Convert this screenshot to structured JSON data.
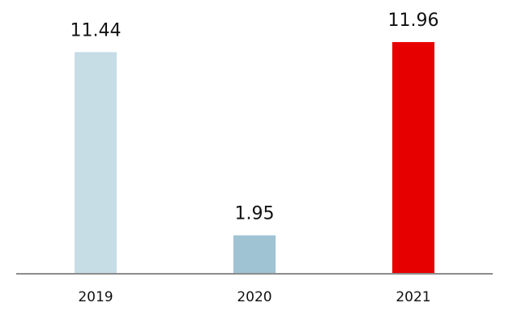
{
  "chart_data": {
    "type": "bar",
    "categories": [
      "2019",
      "2020",
      "2021"
    ],
    "values": [
      11.44,
      1.95,
      11.96
    ],
    "value_labels": [
      "11.44",
      "1.95",
      "11.96"
    ],
    "bar_colors": [
      "#c6dde6",
      "#9fc3d3",
      "#e60000"
    ],
    "ylim": [
      0,
      13.3
    ],
    "grid": false,
    "legend": "none"
  }
}
